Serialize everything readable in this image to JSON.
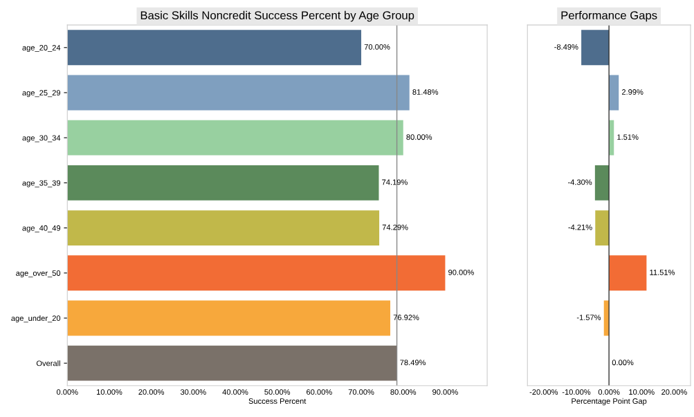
{
  "chart_data": [
    {
      "type": "bar",
      "orientation": "horizontal",
      "title": "Basic Skills Noncredit Success Percent by Age Group",
      "xlabel": "Success Percent",
      "categories": [
        "age_20_24",
        "age_25_29",
        "age_30_34",
        "age_35_39",
        "age_40_49",
        "age_over_50",
        "age_under_20",
        "Overall"
      ],
      "values": [
        70.0,
        81.48,
        80.0,
        74.19,
        74.29,
        90.0,
        76.92,
        78.49
      ],
      "colors": [
        "#4e6d8d",
        "#7f9fbf",
        "#98d0a0",
        "#5b8a5b",
        "#c1b84a",
        "#f26c35",
        "#f7a83c",
        "#7a7169"
      ],
      "value_labels": [
        "70.00%",
        "81.48%",
        "80.00%",
        "74.19%",
        "74.29%",
        "90.00%",
        "76.92%",
        "78.49%"
      ],
      "xlim": [
        0,
        100
      ],
      "xticks": [
        {
          "value": 0,
          "label": "0.00%"
        },
        {
          "value": 10,
          "label": "10.00%"
        },
        {
          "value": 20,
          "label": "20.00%"
        },
        {
          "value": 30,
          "label": "30.00%"
        },
        {
          "value": 40,
          "label": "40.00%"
        },
        {
          "value": 50,
          "label": "50.00%"
        },
        {
          "value": 60,
          "label": "60.00%"
        },
        {
          "value": 70,
          "label": "70.00%"
        },
        {
          "value": 80,
          "label": "80.00%"
        },
        {
          "value": 90,
          "label": "90.00%"
        }
      ],
      "ref_lines": [
        {
          "axis": "x",
          "value": 78.49,
          "label": null,
          "color": "#888888"
        }
      ]
    },
    {
      "type": "bar",
      "orientation": "horizontal",
      "title": "Performance Gaps",
      "xlabel": "Percentage Point Gap",
      "categories": [
        null,
        null,
        null,
        null,
        null,
        null,
        null,
        null
      ],
      "values": [
        -8.49,
        2.99,
        1.51,
        -4.3,
        -4.21,
        11.51,
        -1.57,
        0.0
      ],
      "colors": [
        "#4e6d8d",
        "#7f9fbf",
        "#98d0a0",
        "#5b8a5b",
        "#c1b84a",
        "#f26c35",
        "#f7a83c",
        "#7a7169"
      ],
      "value_labels": [
        "-8.49%",
        "2.99%",
        "1.51%",
        "-4.30%",
        "-4.21%",
        "11.51%",
        "-1.57%",
        "0.00%"
      ],
      "xlim": [
        -25,
        25
      ],
      "xticks": [
        {
          "value": -20,
          "label": "-20.00%"
        },
        {
          "value": -10,
          "label": "-10.00%"
        },
        {
          "value": 0,
          "label": "0.00%"
        },
        {
          "value": 10,
          "label": "10.00%"
        },
        {
          "value": 20,
          "label": "20.00%"
        }
      ],
      "ref_lines": [
        {
          "axis": "x",
          "value": 0,
          "label": null,
          "color": "#333333"
        }
      ]
    }
  ]
}
